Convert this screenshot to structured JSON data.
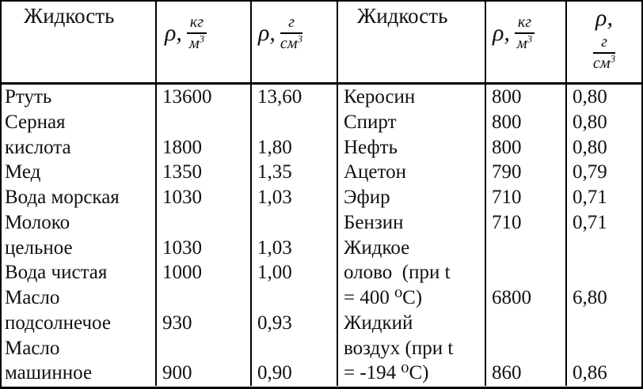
{
  "page": {
    "background": "#ffffff",
    "border_color": "#000000",
    "text_color": "#111111"
  },
  "table": {
    "header": {
      "liquid_left": "Жидкость",
      "liquid_right": "Жидкость",
      "rho": "ρ,",
      "kg_num": "кг",
      "kg_den": "м",
      "g_num": "г",
      "g_den": "см",
      "exp": "3"
    },
    "rows": [
      [
        "Ртуть",
        "13600",
        "13,60",
        "Керосин",
        "800",
        "0,80"
      ],
      [
        "Серная",
        "",
        "",
        "Спирт",
        "800",
        "0,80"
      ],
      [
        "кислота",
        "1800",
        "1,80",
        "Нефть",
        "800",
        "0,80"
      ],
      [
        "Мед",
        "1350",
        "1,35",
        "Ацетон",
        "790",
        "0,79"
      ],
      [
        "Вода морская",
        "1030",
        "1,03",
        "Эфир",
        "710",
        "0,71"
      ],
      [
        "Молоко",
        "",
        "",
        "Бензин",
        "710",
        "0,71"
      ],
      [
        "цельное",
        "1030",
        "1,03",
        "Жидкое",
        "",
        ""
      ],
      [
        "Вода чистая",
        "1000",
        "1,00",
        "олово  (при t",
        "",
        ""
      ],
      [
        "Масло",
        "",
        "",
        "= 400 ⁰С)",
        "6800",
        "6,80"
      ],
      [
        "подсолнечое",
        "930",
        "0,93",
        "Жидкий",
        "",
        ""
      ],
      [
        "Масло",
        "",
        "",
        "воздух (при t",
        "",
        ""
      ],
      [
        "машинное",
        "900",
        "0,90",
        "= -194 ⁰С)",
        "860",
        "0,86"
      ]
    ]
  }
}
